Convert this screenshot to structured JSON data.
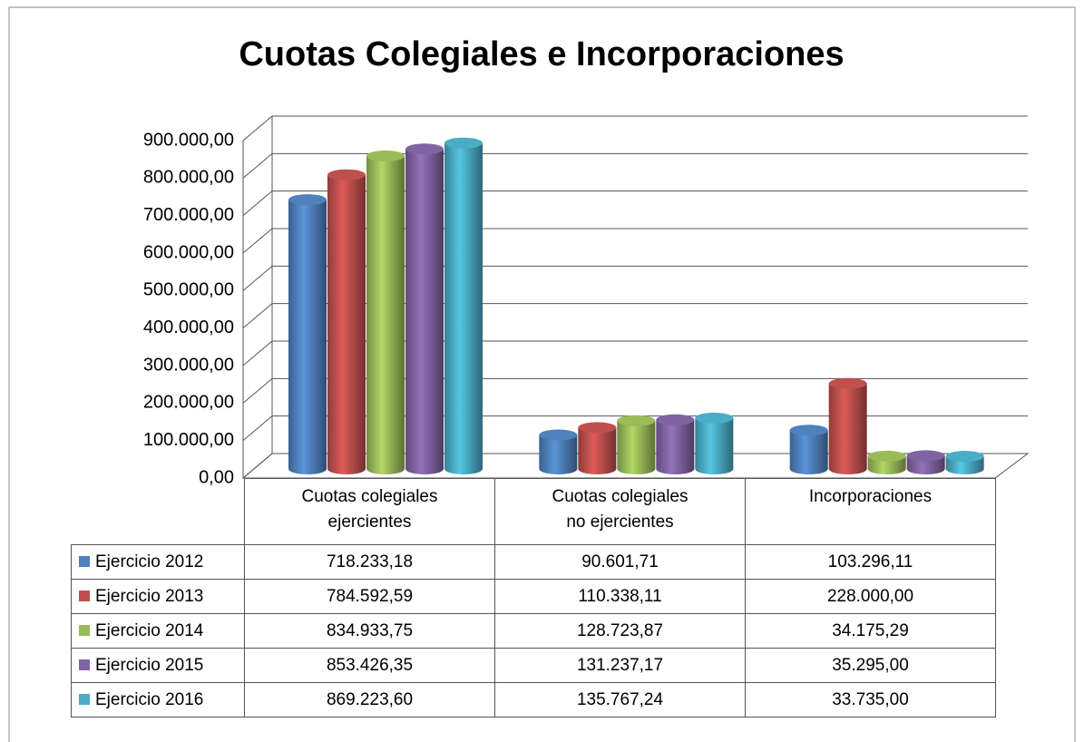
{
  "chart_data": {
    "type": "bar3d",
    "title": "Cuotas Colegiales e Incorporaciones",
    "categories": [
      "Cuotas colegiales ejercientes",
      "Cuotas colegiales no ejercientes",
      "Incorporaciones"
    ],
    "series": [
      {
        "name": "Ejercicio 2012",
        "color": "#4f81bd",
        "values": [
          718233.18,
          90601.71,
          103296.11
        ],
        "value_labels": [
          "718.233,18",
          "90.601,71",
          "103.296,11"
        ]
      },
      {
        "name": "Ejercicio 2013",
        "color": "#c0504d",
        "values": [
          784592.59,
          110338.11,
          228000.0
        ],
        "value_labels": [
          "784.592,59",
          "110.338,11",
          "228.000,00"
        ]
      },
      {
        "name": "Ejercicio 2014",
        "color": "#9bbb59",
        "values": [
          834933.75,
          128723.87,
          34175.29
        ],
        "value_labels": [
          "834.933,75",
          "128.723,87",
          "34.175,29"
        ]
      },
      {
        "name": "Ejercicio 2015",
        "color": "#8064a2",
        "values": [
          853426.35,
          131237.17,
          35295.0
        ],
        "value_labels": [
          "853.426,35",
          "131.237,17",
          "35.295,00"
        ]
      },
      {
        "name": "Ejercicio 2016",
        "color": "#4bacc6",
        "values": [
          869223.6,
          135767.24,
          33735.0
        ],
        "value_labels": [
          "869.223,60",
          "135.767,24",
          "33.735,00"
        ]
      }
    ],
    "ylim": [
      0,
      900000
    ],
    "yticks": [
      {
        "value": 0,
        "label": "0,00"
      },
      {
        "value": 100000,
        "label": "100.000,00"
      },
      {
        "value": 200000,
        "label": "200.000,00"
      },
      {
        "value": 300000,
        "label": "300.000,00"
      },
      {
        "value": 400000,
        "label": "400.000,00"
      },
      {
        "value": 500000,
        "label": "500.000,00"
      },
      {
        "value": 600000,
        "label": "600.000,00"
      },
      {
        "value": 700000,
        "label": "700.000,00"
      },
      {
        "value": 800000,
        "label": "800.000,00"
      },
      {
        "value": 900000,
        "label": "900.000,00"
      }
    ],
    "grid": true,
    "legend": "table"
  }
}
